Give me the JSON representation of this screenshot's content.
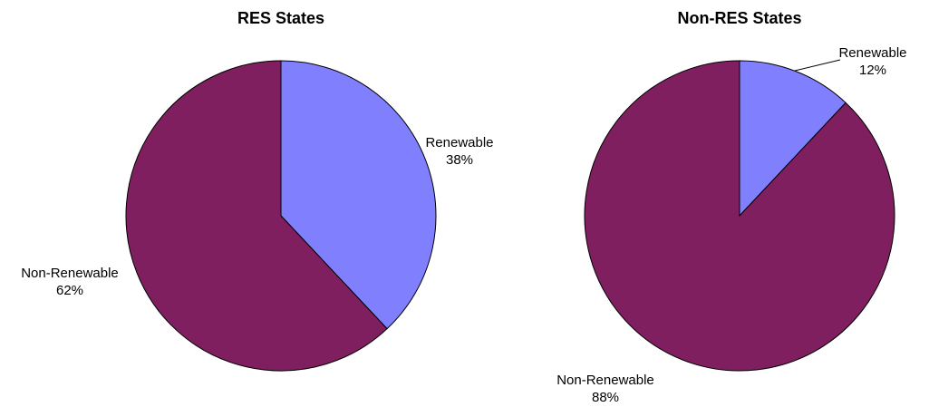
{
  "chart_data": [
    {
      "type": "pie",
      "title": "RES States",
      "categories": [
        "Renewable",
        "Non-Renewable"
      ],
      "values": [
        38,
        62
      ],
      "value_labels": [
        "38%",
        "62%"
      ],
      "colors": [
        "#8080ff",
        "#7f1f5f"
      ]
    },
    {
      "type": "pie",
      "title": "Non-RES States",
      "categories": [
        "Renewable",
        "Non-Renewable"
      ],
      "values": [
        12,
        88
      ],
      "value_labels": [
        "12%",
        "88%"
      ],
      "colors": [
        "#8080ff",
        "#7f1f5f"
      ]
    }
  ]
}
